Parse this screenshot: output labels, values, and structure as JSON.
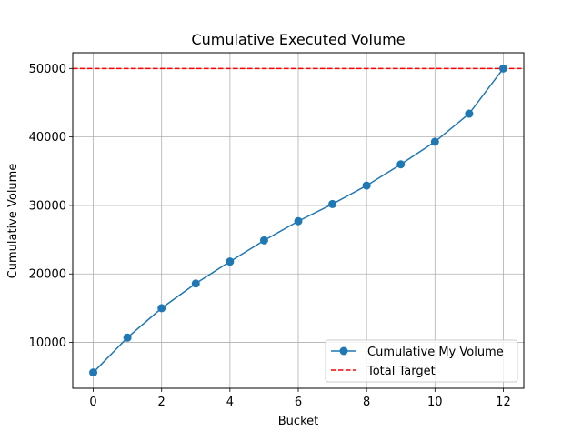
{
  "chart_data": {
    "type": "line",
    "title": "Cumulative Executed Volume",
    "xlabel": "Bucket",
    "ylabel": "Cumulative Volume",
    "xlim": [
      -0.6,
      12.6
    ],
    "ylim": [
      3300,
      52300
    ],
    "xticks": [
      0,
      2,
      4,
      6,
      8,
      10,
      12
    ],
    "yticks": [
      10000,
      20000,
      30000,
      40000,
      50000
    ],
    "grid": true,
    "legend_position": "lower-right",
    "series": [
      {
        "name": "Cumulative My Volume",
        "style": "line-with-circle-markers",
        "color": "#1f77b4",
        "x": [
          0,
          1,
          2,
          3,
          4,
          5,
          6,
          7,
          8,
          9,
          10,
          11,
          12
        ],
        "values": [
          5600,
          10700,
          15000,
          18600,
          21800,
          24900,
          27700,
          30200,
          32900,
          36000,
          39300,
          43400,
          50000
        ]
      },
      {
        "name": "Total Target",
        "style": "dashed-horizontal-line",
        "color": "#ff0000",
        "value": 50000
      }
    ]
  }
}
